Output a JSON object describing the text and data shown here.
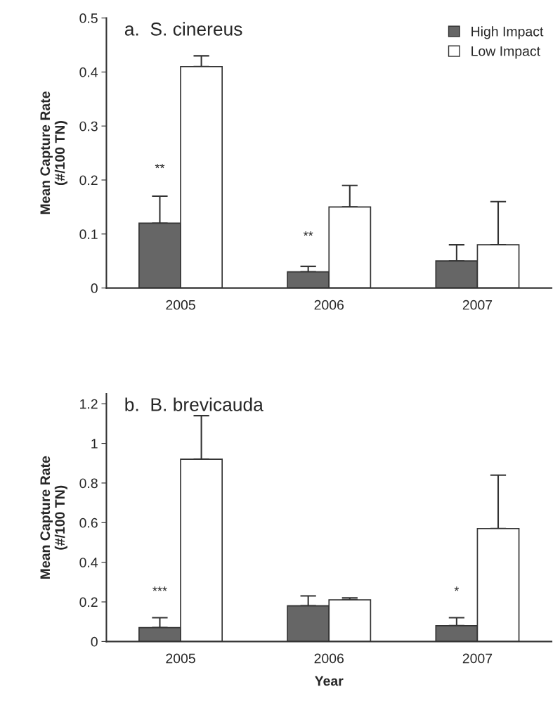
{
  "chart_data": [
    {
      "type": "bar",
      "title": "a.  S. cinereus",
      "ylabel": "Mean Capture Rate\n(#/100 TN)",
      "categories": [
        "2005",
        "2006",
        "2007"
      ],
      "ylim": [
        0,
        0.5
      ],
      "yticks": [
        0,
        0.1,
        0.2,
        0.3,
        0.4,
        0.5
      ],
      "grid": false,
      "legend": "top right",
      "series": [
        {
          "name": "High Impact",
          "color": "#666666",
          "values": [
            0.12,
            0.03,
            0.05
          ],
          "errors": [
            [
              0.12,
              0.17
            ],
            [
              0.03,
              0.04
            ],
            [
              0.05,
              0.08
            ]
          ]
        },
        {
          "name": "Low Impact",
          "color": "#ffffff",
          "values": [
            0.41,
            0.15,
            0.08
          ],
          "errors": [
            [
              0.41,
              0.43
            ],
            [
              0.15,
              0.19
            ],
            [
              0.08,
              0.16
            ]
          ]
        }
      ],
      "annotations": [
        {
          "text": "**",
          "x": "2005",
          "y": 0.22
        },
        {
          "text": "**",
          "x": "2006",
          "y": 0.095
        }
      ]
    },
    {
      "type": "bar",
      "title": "b.  B. brevicauda",
      "xlabel": "Year",
      "ylabel": "Mean Capture Rate\n(#/100 TN)",
      "categories": [
        "2005",
        "2006",
        "2007"
      ],
      "ylim": [
        0,
        1.25
      ],
      "yticks": [
        0,
        0.2,
        0.4,
        0.6,
        0.8,
        1,
        1.2
      ],
      "grid": false,
      "legend": false,
      "series": [
        {
          "color": "#666666",
          "values": [
            0.07,
            0.18,
            0.08
          ],
          "errors": [
            [
              0.07,
              0.12
            ],
            [
              0.18,
              0.23
            ],
            [
              0.08,
              0.12
            ]
          ]
        },
        {
          "color": "#ffffff",
          "values": [
            0.92,
            0.21,
            0.57
          ],
          "errors": [
            [
              0.92,
              1.14
            ],
            [
              0.21,
              0.22
            ],
            [
              0.57,
              0.84
            ]
          ]
        }
      ],
      "annotations": [
        {
          "text": "***",
          "x": "2005",
          "y": 0.25
        },
        {
          "text": "*",
          "x": "2007",
          "y": 0.25
        }
      ]
    }
  ]
}
